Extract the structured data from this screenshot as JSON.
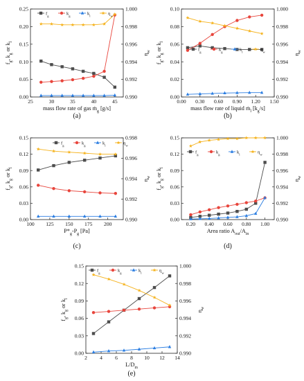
{
  "colors": {
    "fg": "#4d4d4d",
    "kg": "#e8453c",
    "kl": "#2a7de1",
    "eta": "#f5b21b"
  },
  "chart_data": [
    {
      "id": "a",
      "panel_label": "(a)",
      "type": "line",
      "xlabel": "mass flow rate of gas ṁg [g/s]",
      "ylabel": "fg, kg or kl",
      "ylabel2": "ηw",
      "xlim": [
        25,
        47
      ],
      "ylim": [
        0,
        0.25
      ],
      "y2lim": [
        0.99,
        1.0
      ],
      "xticks": [
        25,
        30,
        35,
        40,
        45
      ],
      "yticks": [
        0.0,
        0.05,
        0.1,
        0.15,
        0.2,
        0.25
      ],
      "y2ticks": [
        0.99,
        0.992,
        0.994,
        0.996,
        0.998,
        1.0
      ],
      "legend": "top-left",
      "series": [
        {
          "name": "fg",
          "key": "fg",
          "axis": "left",
          "marker": "square",
          "x": [
            27.5,
            30,
            32.5,
            35,
            37.5,
            40,
            42.5,
            45
          ],
          "y": [
            0.102,
            0.092,
            0.086,
            0.08,
            0.073,
            0.067,
            0.056,
            0.028
          ]
        },
        {
          "name": "kg",
          "key": "kg",
          "axis": "left",
          "marker": "circle",
          "x": [
            27.5,
            30,
            32.5,
            35,
            37.5,
            40,
            42.5,
            45
          ],
          "y": [
            0.042,
            0.044,
            0.046,
            0.049,
            0.053,
            0.059,
            0.073,
            0.233
          ]
        },
        {
          "name": "kl",
          "key": "kl",
          "axis": "left",
          "marker": "triangle",
          "x": [
            27.5,
            30,
            32.5,
            35,
            37.5,
            40,
            42.5,
            45
          ],
          "y": [
            0.004,
            0.004,
            0.004,
            0.004,
            0.004,
            0.004,
            0.004,
            0.005
          ]
        },
        {
          "name": "ηw",
          "key": "eta",
          "axis": "right",
          "marker": "star",
          "x": [
            27.5,
            30,
            32.5,
            35,
            37.5,
            40,
            42.5,
            45
          ],
          "y": [
            0.9983,
            0.9983,
            0.9982,
            0.9982,
            0.9982,
            0.9982,
            0.9983,
            0.9994
          ]
        }
      ]
    },
    {
      "id": "b",
      "panel_label": "(b)",
      "type": "line",
      "xlabel": "mass flow rate of liquid ṁl [kg/s]",
      "ylabel": "fg, kg or kl",
      "ylabel2": "ηw",
      "xlim": [
        0,
        1.5
      ],
      "ylim": [
        0,
        0.1
      ],
      "y2lim": [
        0.99,
        1.0
      ],
      "xticks": [
        0.0,
        0.3,
        0.6,
        0.9,
        1.2,
        1.5
      ],
      "yticks": [
        0.0,
        0.02,
        0.04,
        0.06,
        0.08,
        0.1
      ],
      "y2ticks": [
        0.99,
        0.992,
        0.994,
        0.996,
        0.998,
        1.0
      ],
      "legend": "middle",
      "series": [
        {
          "name": "fg",
          "key": "fg",
          "axis": "left",
          "marker": "square",
          "x": [
            0.1,
            0.3,
            0.5,
            0.7,
            0.9,
            1.1,
            1.3
          ],
          "y": [
            0.056,
            0.058,
            0.056,
            0.055,
            0.054,
            0.054,
            0.054
          ]
        },
        {
          "name": "kg",
          "key": "kg",
          "axis": "left",
          "marker": "circle",
          "x": [
            0.1,
            0.3,
            0.5,
            0.7,
            0.9,
            1.1,
            1.3
          ],
          "y": [
            0.053,
            0.061,
            0.071,
            0.08,
            0.087,
            0.091,
            0.093
          ]
        },
        {
          "name": "kl",
          "key": "kl",
          "axis": "left",
          "marker": "triangle",
          "x": [
            0.1,
            0.3,
            0.5,
            0.7,
            0.9,
            1.1,
            1.3
          ],
          "y": [
            0.003,
            0.0035,
            0.004,
            0.0045,
            0.0048,
            0.005,
            0.005
          ]
        },
        {
          "name": "ηw",
          "key": "eta",
          "axis": "right",
          "marker": "star",
          "x": [
            0.1,
            0.3,
            0.5,
            0.7,
            0.9,
            1.1,
            1.3
          ],
          "y": [
            0.999,
            0.9986,
            0.9984,
            0.9981,
            0.9978,
            0.9975,
            0.9972
          ]
        }
      ]
    },
    {
      "id": "c",
      "panel_label": "(c)",
      "type": "line",
      "xlabel": "P*g-Pg [Pa]",
      "ylabel": "fg, kg or kl",
      "ylabel2": "ηw",
      "xlim": [
        100,
        220
      ],
      "ylim": [
        0,
        0.15
      ],
      "y2lim": [
        0.99,
        0.998
      ],
      "xticks": [
        100,
        125,
        150,
        175,
        200
      ],
      "yticks": [
        0.0,
        0.03,
        0.06,
        0.09,
        0.12,
        0.15
      ],
      "y2ticks": [
        0.99,
        0.992,
        0.994,
        0.996,
        0.998
      ],
      "legend": "top-center",
      "series": [
        {
          "name": "fg",
          "key": "fg",
          "axis": "left",
          "marker": "square",
          "x": [
            110,
            130,
            150,
            170,
            190,
            210
          ],
          "y": [
            0.091,
            0.099,
            0.105,
            0.109,
            0.113,
            0.117
          ]
        },
        {
          "name": "kg",
          "key": "kg",
          "axis": "left",
          "marker": "circle",
          "x": [
            110,
            130,
            150,
            170,
            190,
            210
          ],
          "y": [
            0.063,
            0.057,
            0.053,
            0.051,
            0.049,
            0.048
          ]
        },
        {
          "name": "kl",
          "key": "kl",
          "axis": "left",
          "marker": "triangle",
          "x": [
            110,
            130,
            150,
            170,
            190,
            210
          ],
          "y": [
            0.006,
            0.006,
            0.006,
            0.006,
            0.006,
            0.006
          ]
        },
        {
          "name": "ηw",
          "key": "eta",
          "axis": "right",
          "marker": "star",
          "x": [
            110,
            130,
            150,
            170,
            190,
            210
          ],
          "y": [
            0.9969,
            0.9967,
            0.9966,
            0.9965,
            0.9964,
            0.9964
          ]
        }
      ]
    },
    {
      "id": "d",
      "panel_label": "(d)",
      "type": "line",
      "xlabel": "Area ratio Aout/Ain",
      "ylabel": "fg, kg or kl",
      "ylabel2": "ηw",
      "xlim": [
        0.1,
        1.1
      ],
      "ylim": [
        0,
        0.15
      ],
      "y2lim": [
        0.99,
        1.0
      ],
      "xticks": [
        0.2,
        0.4,
        0.6,
        0.8,
        1.0
      ],
      "yticks": [
        0.0,
        0.03,
        0.06,
        0.09,
        0.12,
        0.15
      ],
      "y2ticks": [
        0.99,
        0.992,
        0.994,
        0.996,
        0.998,
        1.0
      ],
      "legend": "top-center",
      "series": [
        {
          "name": "fg",
          "key": "fg",
          "axis": "left",
          "marker": "square",
          "x": [
            0.2,
            0.3,
            0.4,
            0.5,
            0.6,
            0.7,
            0.8,
            0.9,
            1.0
          ],
          "y": [
            0.004,
            0.006,
            0.008,
            0.01,
            0.012,
            0.015,
            0.019,
            0.03,
            0.105
          ]
        },
        {
          "name": "kg",
          "key": "kg",
          "axis": "left",
          "marker": "circle",
          "x": [
            0.2,
            0.3,
            0.4,
            0.5,
            0.6,
            0.7,
            0.8,
            0.9,
            1.0
          ],
          "y": [
            0.009,
            0.014,
            0.018,
            0.022,
            0.025,
            0.028,
            0.031,
            0.034,
            0.04
          ]
        },
        {
          "name": "kl",
          "key": "kl",
          "axis": "left",
          "marker": "triangle",
          "x": [
            0.2,
            0.3,
            0.4,
            0.5,
            0.6,
            0.7,
            0.8,
            0.9,
            1.0
          ],
          "y": [
            0.001,
            0.0015,
            0.002,
            0.003,
            0.004,
            0.005,
            0.007,
            0.011,
            0.04
          ]
        },
        {
          "name": "ηw",
          "key": "eta",
          "axis": "right",
          "marker": "star",
          "x": [
            0.2,
            0.3,
            0.4,
            0.5,
            0.6,
            0.7,
            0.8,
            0.9,
            1.0
          ],
          "y": [
            0.999,
            0.9995,
            0.9997,
            0.9998,
            0.9999,
            0.9999,
            1.0,
            1.0,
            1.0
          ]
        }
      ]
    },
    {
      "id": "e",
      "panel_label": "(e)",
      "type": "line",
      "xlabel": "L/Din",
      "ylabel": "fg, kg or kl",
      "ylabel2": "ηw",
      "xlim": [
        2,
        14
      ],
      "ylim": [
        0,
        0.15
      ],
      "y2lim": [
        0.99,
        1.0
      ],
      "xticks": [
        2,
        4,
        6,
        8,
        10,
        12,
        14
      ],
      "yticks": [
        0.0,
        0.03,
        0.06,
        0.09,
        0.12,
        0.15
      ],
      "y2ticks": [
        0.99,
        0.992,
        0.994,
        0.996,
        0.998,
        1.0
      ],
      "legend": "top",
      "series": [
        {
          "name": "fg",
          "key": "fg",
          "axis": "left",
          "marker": "square",
          "x": [
            3,
            5,
            7,
            9,
            11,
            13
          ],
          "y": [
            0.034,
            0.054,
            0.074,
            0.094,
            0.113,
            0.133
          ]
        },
        {
          "name": "kg",
          "key": "kg",
          "axis": "left",
          "marker": "circle",
          "x": [
            3,
            5,
            7,
            9,
            11,
            13
          ],
          "y": [
            0.07,
            0.072,
            0.074,
            0.076,
            0.078,
            0.08
          ]
        },
        {
          "name": "kl",
          "key": "kl",
          "axis": "left",
          "marker": "triangle",
          "x": [
            3,
            5,
            7,
            9,
            11,
            13
          ],
          "y": [
            0.002,
            0.004,
            0.005,
            0.007,
            0.009,
            0.011
          ]
        },
        {
          "name": "ηw",
          "key": "eta",
          "axis": "right",
          "marker": "star",
          "x": [
            3,
            5,
            7,
            9,
            11,
            13
          ],
          "y": [
            0.999,
            0.9985,
            0.9979,
            0.9972,
            0.9964,
            0.9955
          ]
        }
      ]
    }
  ]
}
